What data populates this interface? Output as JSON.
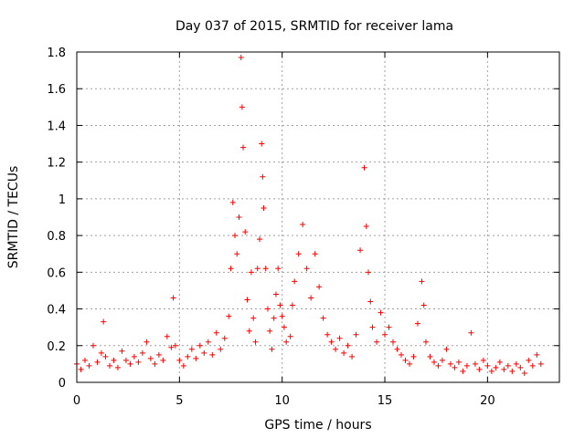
{
  "chart_data": {
    "type": "scatter",
    "title": "Day 037 of 2015, SRMTID for receiver lama",
    "xlabel": "GPS time / hours",
    "ylabel": "SRMTID / TECUs",
    "xlim": [
      0,
      23.5
    ],
    "ylim": [
      0,
      1.8
    ],
    "xticks": [
      0,
      5,
      10,
      15,
      20
    ],
    "xtick_labels": [
      "0",
      "5",
      "10",
      "15",
      "20"
    ],
    "yticks": [
      0,
      0.2,
      0.4,
      0.6,
      0.8,
      1.0,
      1.2,
      1.4,
      1.6,
      1.8
    ],
    "ytick_labels": [
      "0",
      "0.2",
      "0.4",
      "0.6",
      "0.8",
      "1",
      "1.2",
      "1.4",
      "1.6",
      "1.8"
    ],
    "grid": true,
    "marker": "+",
    "color": "#ff0000",
    "series": [
      {
        "name": "SRMTID",
        "points": [
          [
            0.0,
            0.1
          ],
          [
            0.2,
            0.07
          ],
          [
            0.4,
            0.12
          ],
          [
            0.6,
            0.09
          ],
          [
            0.8,
            0.2
          ],
          [
            1.0,
            0.11
          ],
          [
            1.2,
            0.16
          ],
          [
            1.3,
            0.33
          ],
          [
            1.4,
            0.14
          ],
          [
            1.6,
            0.09
          ],
          [
            1.8,
            0.12
          ],
          [
            2.0,
            0.08
          ],
          [
            2.2,
            0.17
          ],
          [
            2.4,
            0.12
          ],
          [
            2.6,
            0.1
          ],
          [
            2.8,
            0.14
          ],
          [
            3.0,
            0.11
          ],
          [
            3.2,
            0.16
          ],
          [
            3.4,
            0.22
          ],
          [
            3.6,
            0.13
          ],
          [
            3.8,
            0.1
          ],
          [
            4.0,
            0.15
          ],
          [
            4.2,
            0.12
          ],
          [
            4.4,
            0.25
          ],
          [
            4.6,
            0.19
          ],
          [
            4.7,
            0.46
          ],
          [
            4.8,
            0.2
          ],
          [
            5.0,
            0.12
          ],
          [
            5.2,
            0.09
          ],
          [
            5.4,
            0.14
          ],
          [
            5.6,
            0.18
          ],
          [
            5.8,
            0.13
          ],
          [
            6.0,
            0.2
          ],
          [
            6.2,
            0.16
          ],
          [
            6.4,
            0.22
          ],
          [
            6.6,
            0.15
          ],
          [
            6.8,
            0.27
          ],
          [
            7.0,
            0.18
          ],
          [
            7.2,
            0.24
          ],
          [
            7.4,
            0.36
          ],
          [
            7.5,
            0.62
          ],
          [
            7.6,
            0.98
          ],
          [
            7.7,
            0.8
          ],
          [
            7.8,
            0.7
          ],
          [
            7.9,
            0.9
          ],
          [
            8.0,
            1.77
          ],
          [
            8.05,
            1.5
          ],
          [
            8.1,
            1.28
          ],
          [
            8.2,
            0.82
          ],
          [
            8.3,
            0.45
          ],
          [
            8.4,
            0.28
          ],
          [
            8.5,
            0.6
          ],
          [
            8.6,
            0.35
          ],
          [
            8.7,
            0.22
          ],
          [
            8.8,
            0.62
          ],
          [
            8.9,
            0.78
          ],
          [
            9.0,
            1.3
          ],
          [
            9.05,
            1.12
          ],
          [
            9.1,
            0.95
          ],
          [
            9.2,
            0.62
          ],
          [
            9.3,
            0.4
          ],
          [
            9.4,
            0.28
          ],
          [
            9.5,
            0.18
          ],
          [
            9.6,
            0.35
          ],
          [
            9.7,
            0.48
          ],
          [
            9.8,
            0.62
          ],
          [
            9.9,
            0.42
          ],
          [
            10.0,
            0.36
          ],
          [
            10.1,
            0.3
          ],
          [
            10.2,
            0.22
          ],
          [
            10.4,
            0.25
          ],
          [
            10.5,
            0.42
          ],
          [
            10.6,
            0.55
          ],
          [
            10.8,
            0.7
          ],
          [
            11.0,
            0.86
          ],
          [
            11.2,
            0.62
          ],
          [
            11.4,
            0.46
          ],
          [
            11.6,
            0.7
          ],
          [
            11.8,
            0.52
          ],
          [
            12.0,
            0.35
          ],
          [
            12.2,
            0.26
          ],
          [
            12.4,
            0.22
          ],
          [
            12.6,
            0.18
          ],
          [
            12.8,
            0.24
          ],
          [
            13.0,
            0.16
          ],
          [
            13.2,
            0.2
          ],
          [
            13.4,
            0.14
          ],
          [
            13.6,
            0.26
          ],
          [
            13.8,
            0.72
          ],
          [
            14.0,
            1.17
          ],
          [
            14.1,
            0.85
          ],
          [
            14.2,
            0.6
          ],
          [
            14.3,
            0.44
          ],
          [
            14.4,
            0.3
          ],
          [
            14.6,
            0.22
          ],
          [
            14.8,
            0.38
          ],
          [
            15.0,
            0.26
          ],
          [
            15.2,
            0.3
          ],
          [
            15.4,
            0.22
          ],
          [
            15.6,
            0.18
          ],
          [
            15.8,
            0.15
          ],
          [
            16.0,
            0.12
          ],
          [
            16.2,
            0.1
          ],
          [
            16.4,
            0.14
          ],
          [
            16.6,
            0.32
          ],
          [
            16.8,
            0.55
          ],
          [
            16.9,
            0.42
          ],
          [
            17.0,
            0.22
          ],
          [
            17.2,
            0.14
          ],
          [
            17.4,
            0.11
          ],
          [
            17.6,
            0.09
          ],
          [
            17.8,
            0.12
          ],
          [
            18.0,
            0.18
          ],
          [
            18.2,
            0.1
          ],
          [
            18.4,
            0.08
          ],
          [
            18.6,
            0.11
          ],
          [
            18.8,
            0.06
          ],
          [
            19.0,
            0.09
          ],
          [
            19.2,
            0.27
          ],
          [
            19.4,
            0.1
          ],
          [
            19.6,
            0.07
          ],
          [
            19.8,
            0.12
          ],
          [
            20.0,
            0.09
          ],
          [
            20.2,
            0.06
          ],
          [
            20.4,
            0.08
          ],
          [
            20.6,
            0.11
          ],
          [
            20.8,
            0.07
          ],
          [
            21.0,
            0.09
          ],
          [
            21.2,
            0.06
          ],
          [
            21.4,
            0.1
          ],
          [
            21.6,
            0.08
          ],
          [
            21.8,
            0.05
          ],
          [
            22.0,
            0.12
          ],
          [
            22.2,
            0.09
          ],
          [
            22.4,
            0.15
          ],
          [
            22.6,
            0.1
          ]
        ]
      }
    ]
  }
}
